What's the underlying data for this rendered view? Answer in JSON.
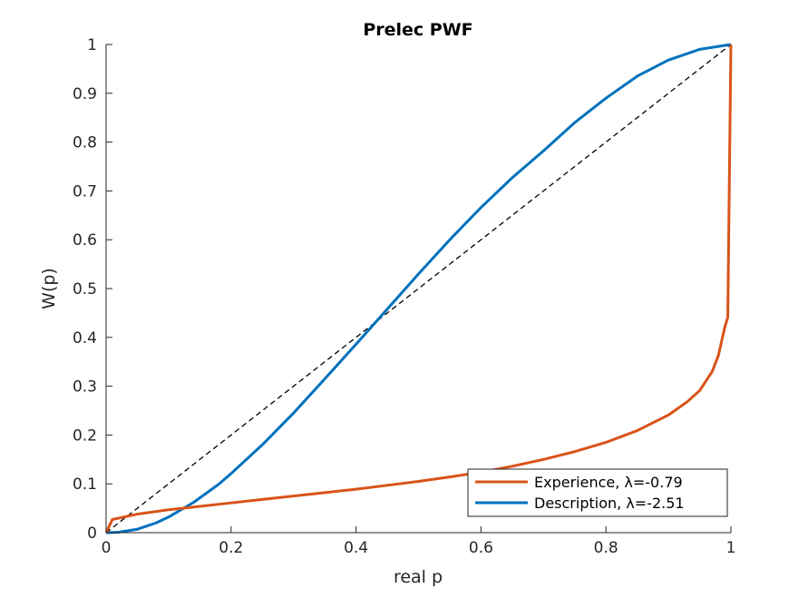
{
  "chart_data": {
    "type": "line",
    "title": "Prelec PWF",
    "xlabel": "real p",
    "ylabel": "W(p)",
    "xlim": [
      0,
      1
    ],
    "ylim": [
      0,
      1
    ],
    "xticks": [
      "0",
      "0.2",
      "0.4",
      "0.6",
      "0.8",
      "1"
    ],
    "yticks": [
      "0",
      "0.1",
      "0.2",
      "0.3",
      "0.4",
      "0.5",
      "0.6",
      "0.7",
      "0.8",
      "0.9",
      "1"
    ],
    "grid": false,
    "legend_position": "bottom-right",
    "series": [
      {
        "name": "Experience, λ=-0.79",
        "color": "#D95319",
        "style": "solid",
        "x": [
          0,
          0.01,
          0.05,
          0.1,
          0.15,
          0.2,
          0.25,
          0.3,
          0.35,
          0.4,
          0.45,
          0.5,
          0.55,
          0.6,
          0.65,
          0.7,
          0.75,
          0.8,
          0.85,
          0.9,
          0.93,
          0.95,
          0.97,
          0.98,
          0.99,
          0.995,
          1
        ],
        "y": [
          0,
          0.027,
          0.038,
          0.047,
          0.054,
          0.061,
          0.068,
          0.075,
          0.082,
          0.089,
          0.097,
          0.105,
          0.114,
          0.124,
          0.136,
          0.15,
          0.166,
          0.185,
          0.209,
          0.241,
          0.268,
          0.291,
          0.33,
          0.363,
          0.42,
          0.441,
          1
        ]
      },
      {
        "name": "Description, λ=-2.51",
        "color": "#0072BD",
        "style": "solid",
        "x": [
          0,
          0.02,
          0.05,
          0.08,
          0.1,
          0.14,
          0.18,
          0.2,
          0.25,
          0.3,
          0.35,
          0.4,
          0.45,
          0.5,
          0.55,
          0.6,
          0.65,
          0.7,
          0.75,
          0.8,
          0.85,
          0.9,
          0.95,
          1
        ],
        "y": [
          0,
          0.001,
          0.007,
          0.02,
          0.032,
          0.062,
          0.099,
          0.121,
          0.18,
          0.245,
          0.315,
          0.386,
          0.458,
          0.53,
          0.6,
          0.666,
          0.727,
          0.782,
          0.84,
          0.89,
          0.935,
          0.968,
          0.99,
          1
        ]
      },
      {
        "name": "",
        "color": "#000000",
        "style": "dashed",
        "x": [
          0,
          1
        ],
        "y": [
          0,
          1
        ]
      }
    ]
  }
}
